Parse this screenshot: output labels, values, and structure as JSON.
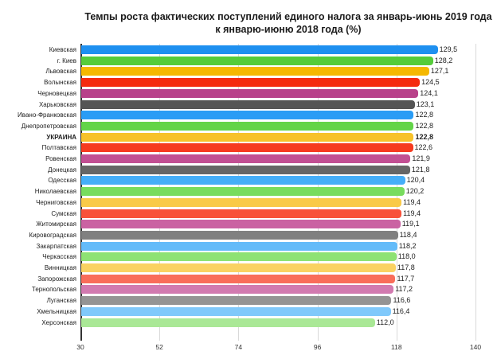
{
  "chart_data": {
    "type": "bar",
    "orientation": "horizontal",
    "title": "Темпы роста фактических поступлений единого налога за январь-июнь 2019 года к январю-июню 2018 года (%)",
    "title_lines": [
      "Темпы роста фактических поступлений единого налога за январь-июнь 2019 года",
      "к январю-июню 2018 года (%)"
    ],
    "xlabel": "",
    "ylabel": "",
    "xlim": [
      30,
      140
    ],
    "x_ticks": [
      "30",
      "52",
      "74",
      "96",
      "118",
      "140"
    ],
    "grid": true,
    "legend": null,
    "categories": [
      "Киевская",
      "г. Киев",
      "Львовская",
      "Волынская",
      "Черновецкая",
      "Харьковская",
      "Ивано-Франковская",
      "Днепропетровская",
      "УКРАИНА",
      "Полтавская",
      "Ровенская",
      "Донецкая",
      "Одесская",
      "Николаевская",
      "Черниговская",
      "Сумская",
      "Житомирская",
      "Кировоградская",
      "Закарпатская",
      "Черкасская",
      "Винницкая",
      "Запорожская",
      "Тернопольская",
      "Луганская",
      "Хмельницкая",
      "Херсонская"
    ],
    "values": [
      129.5,
      128.2,
      127.1,
      124.5,
      124.1,
      123.1,
      122.8,
      122.8,
      122.8,
      122.6,
      121.9,
      121.8,
      120.4,
      120.2,
      119.4,
      119.4,
      119.1,
      118.4,
      118.2,
      118.0,
      117.8,
      117.7,
      117.2,
      116.6,
      116.4,
      112.0
    ],
    "value_labels": [
      "129,5",
      "128,2",
      "127,1",
      "124,5",
      "124,1",
      "123,1",
      "122,8",
      "122,8",
      "122,8",
      "122,6",
      "121,9",
      "121,8",
      "120,4",
      "120,2",
      "119,4",
      "119,4",
      "119,1",
      "118,4",
      "118,2",
      "118,0",
      "117,8",
      "117,7",
      "117,2",
      "116,6",
      "116,4",
      "112,0"
    ],
    "highlighted": "УКРАИНА",
    "colors": [
      "#1e90f0",
      "#55cc3a",
      "#f5b800",
      "#f52a0f",
      "#b8418a",
      "#555555",
      "#2a9cf5",
      "#63d448",
      "#f7c22a",
      "#f63a1f",
      "#c24f93",
      "#666666",
      "#45aef8",
      "#78dc5e",
      "#f9ca48",
      "#f8513a",
      "#ca62a2",
      "#808080",
      "#63bbf9",
      "#8ee274",
      "#fad262",
      "#f96d5a",
      "#d27ab0",
      "#949494",
      "#80c9fb",
      "#aae896"
    ]
  }
}
